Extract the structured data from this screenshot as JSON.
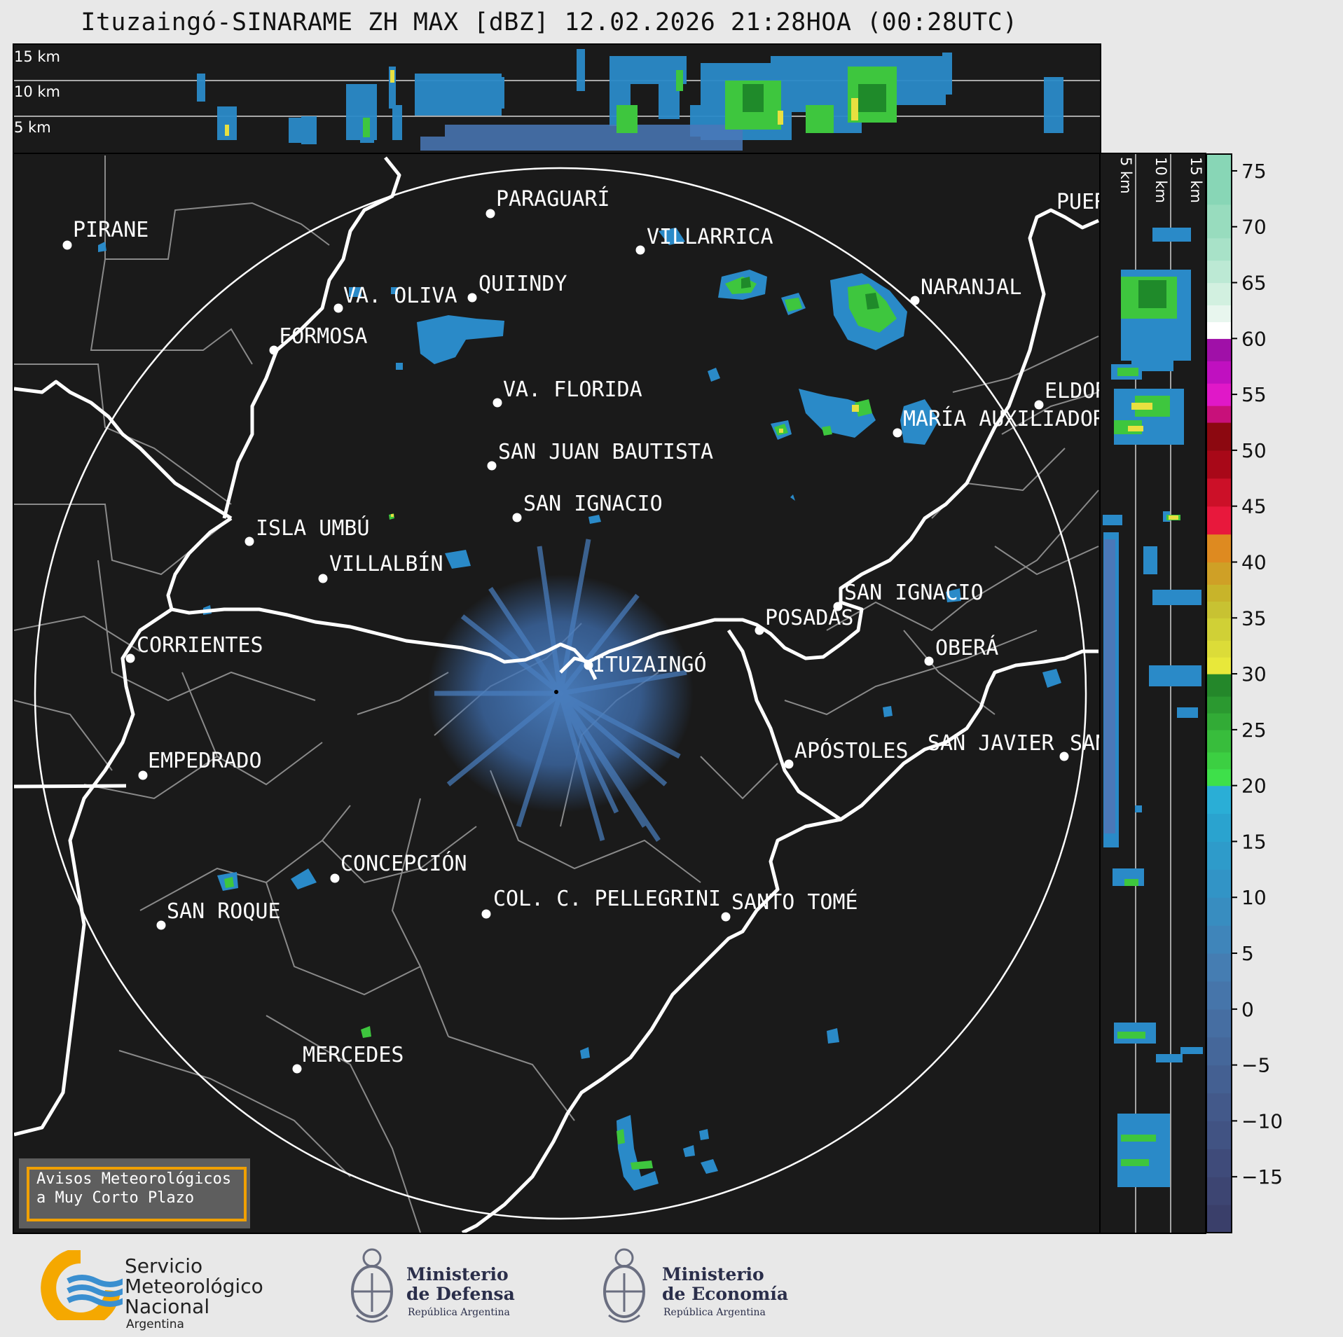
{
  "title": "Ituzaingó-SINARAME ZH MAX [dBZ] 12.02.2026 21:28HOA (00:28UTC)",
  "top_profile_labels": [
    "15 km",
    "10 km",
    "5 km"
  ],
  "side_profile_labels": [
    "5 km",
    "10 km",
    "15 km"
  ],
  "colorbar": {
    "ticks": [
      "75",
      "70",
      "65",
      "60",
      "55",
      "50",
      "45",
      "40",
      "35",
      "30",
      "25",
      "20",
      "15",
      "10",
      "5",
      "0",
      "−5",
      "−10",
      "−15"
    ]
  },
  "cities": [
    {
      "name": "PIRANE"
    },
    {
      "name": "PARAGUARÍ"
    },
    {
      "name": "VILLARRICA"
    },
    {
      "name": "PUERTO"
    },
    {
      "name": "VA. OLIVA"
    },
    {
      "name": "QUIINDY"
    },
    {
      "name": "NARANJAL"
    },
    {
      "name": "FORMOSA"
    },
    {
      "name": "VA. FLORIDA"
    },
    {
      "name": "ELDORADO"
    },
    {
      "name": "MARÍA AUXILIADORA"
    },
    {
      "name": "SAN JUAN BAUTISTA"
    },
    {
      "name": "SAN IGNACIO"
    },
    {
      "name": "ISLA UMBÚ"
    },
    {
      "name": "VILLALBÍN"
    },
    {
      "name": "SAN IGNACIO"
    },
    {
      "name": "POSADAS"
    },
    {
      "name": "CORRIENTES"
    },
    {
      "name": "ITUZAINGÓ"
    },
    {
      "name": "OBERÁ"
    },
    {
      "name": "EMPEDRADO"
    },
    {
      "name": "APÓSTOLES"
    },
    {
      "name": "SAN JAVIER"
    },
    {
      "name": "SAN"
    },
    {
      "name": "CONCEPCIÓN"
    },
    {
      "name": "COL. C. PELLEGRINI"
    },
    {
      "name": "SANTO TOMÉ"
    },
    {
      "name": "SAN ROQUE"
    },
    {
      "name": "MERCEDES"
    }
  ],
  "warning": {
    "line1": "Avisos Meteorológicos",
    "line2": "a Muy Corto Plazo"
  },
  "logos": {
    "smn": {
      "line1": "Servicio",
      "line2": "Meteorológico",
      "line3": "Nacional",
      "line4": "Argentina"
    },
    "defensa": {
      "line1": "Ministerio",
      "line2": "de Defensa",
      "line3": "República Argentina"
    },
    "economia": {
      "line1": "Ministerio",
      "line2": "de Economía",
      "line3": "República Argentina"
    }
  },
  "colors": {
    "background": "#1a1a1a",
    "page": "#e8e8e8",
    "echo_weak": "#2a8ac8",
    "echo_moderate": "#3ec63e",
    "echo_strong": "#e8e040",
    "warning_border": "#f0a000"
  }
}
